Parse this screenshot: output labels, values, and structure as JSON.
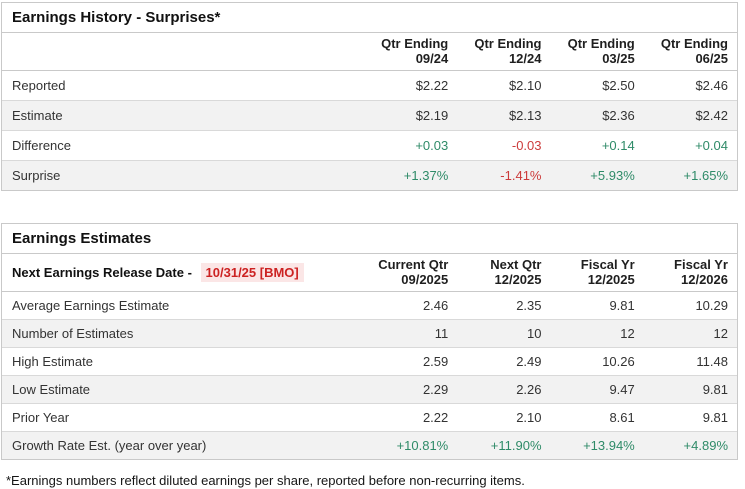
{
  "colors": {
    "positive": "#2f8b68",
    "negative": "#cc3b3b",
    "release_date_text": "#cc2222",
    "release_date_background": "#fbe6e6",
    "row_stripe": "#f2f2f2",
    "border": "#c9c9c9"
  },
  "earnings_history": {
    "title": "Earnings History - Surprises*",
    "columns": [
      {
        "line1": "Qtr Ending",
        "line2": "09/24"
      },
      {
        "line1": "Qtr Ending",
        "line2": "12/24"
      },
      {
        "line1": "Qtr Ending",
        "line2": "03/25"
      },
      {
        "line1": "Qtr Ending",
        "line2": "06/25"
      }
    ],
    "rows": [
      {
        "label": "Reported",
        "values": [
          "$2.22",
          "$2.10",
          "$2.50",
          "$2.46"
        ],
        "tones": [
          "neutral",
          "neutral",
          "neutral",
          "neutral"
        ]
      },
      {
        "label": "Estimate",
        "values": [
          "$2.19",
          "$2.13",
          "$2.36",
          "$2.42"
        ],
        "tones": [
          "neutral",
          "neutral",
          "neutral",
          "neutral"
        ]
      },
      {
        "label": "Difference",
        "values": [
          "+0.03",
          "-0.03",
          "+0.14",
          "+0.04"
        ],
        "tones": [
          "pos",
          "neg",
          "pos",
          "pos"
        ]
      },
      {
        "label": "Surprise",
        "values": [
          "+1.37%",
          "-1.41%",
          "+5.93%",
          "+1.65%"
        ],
        "tones": [
          "pos",
          "neg",
          "pos",
          "pos"
        ]
      }
    ]
  },
  "earnings_estimates": {
    "title": "Earnings Estimates",
    "release_label": "Next Earnings Release Date -",
    "release_date": "10/31/25 [BMO]",
    "columns": [
      {
        "line1": "Current Qtr",
        "line2": "09/2025"
      },
      {
        "line1": "Next Qtr",
        "line2": "12/2025"
      },
      {
        "line1": "Fiscal Yr",
        "line2": "12/2025"
      },
      {
        "line1": "Fiscal Yr",
        "line2": "12/2026"
      }
    ],
    "rows": [
      {
        "label": "Average Earnings Estimate",
        "values": [
          "2.46",
          "2.35",
          "9.81",
          "10.29"
        ],
        "tones": [
          "neutral",
          "neutral",
          "neutral",
          "neutral"
        ]
      },
      {
        "label": "Number of Estimates",
        "values": [
          "11",
          "10",
          "12",
          "12"
        ],
        "tones": [
          "neutral",
          "neutral",
          "neutral",
          "neutral"
        ]
      },
      {
        "label": "High Estimate",
        "values": [
          "2.59",
          "2.49",
          "10.26",
          "11.48"
        ],
        "tones": [
          "neutral",
          "neutral",
          "neutral",
          "neutral"
        ]
      },
      {
        "label": "Low Estimate",
        "values": [
          "2.29",
          "2.26",
          "9.47",
          "9.81"
        ],
        "tones": [
          "neutral",
          "neutral",
          "neutral",
          "neutral"
        ]
      },
      {
        "label": "Prior Year",
        "values": [
          "2.22",
          "2.10",
          "8.61",
          "9.81"
        ],
        "tones": [
          "neutral",
          "neutral",
          "neutral",
          "neutral"
        ]
      },
      {
        "label": "Growth Rate Est. (year over year)",
        "values": [
          "+10.81%",
          "+11.90%",
          "+13.94%",
          "+4.89%"
        ],
        "tones": [
          "pos",
          "pos",
          "pos",
          "pos"
        ]
      }
    ]
  },
  "footnote": "*Earnings numbers reflect diluted earnings per share, reported before non-recurring items."
}
